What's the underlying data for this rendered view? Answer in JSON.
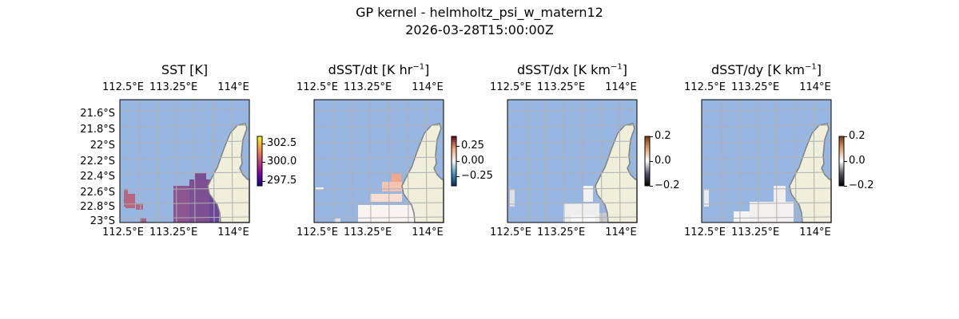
{
  "figure": {
    "title": "GP kernel - helmholtz_psi_w_matern12",
    "subtitle": "2026-03-28T15:00:00Z"
  },
  "colors": {
    "ocean": "#97b6e1",
    "land": "#efefdb",
    "coast": "#808080",
    "grid": "#b0b0b0"
  },
  "chart_data": [
    {
      "type": "heatmap",
      "title": "SST [K]",
      "title_sup": "",
      "title_suffix": "",
      "lon_ticks": [
        "112.5°E",
        "113.25°E",
        "114°E"
      ],
      "lat_ticks": [
        "21.6°S",
        "21.8°S",
        "22°S",
        "22.2°S",
        "22.4°S",
        "22.6°S",
        "22.8°S",
        "23°S"
      ],
      "colormap": "plasma-like",
      "colorbar_ticks": [
        "302.5",
        "300.0",
        "297.5"
      ],
      "colorbar_range": [
        296.8,
        303.5
      ]
    },
    {
      "type": "heatmap",
      "title": "dSST/dt [K hr",
      "title_sup": "−1",
      "title_suffix": "]",
      "lon_ticks": [
        "112.5°E",
        "113.25°E",
        "114°E"
      ],
      "colormap": "RdBu_r",
      "colorbar_ticks": [
        "0.25",
        "0.00",
        "−0.25"
      ],
      "colorbar_range": [
        -0.4,
        0.4
      ]
    },
    {
      "type": "heatmap",
      "title": "dSST/dx [K km",
      "title_sup": "−1",
      "title_suffix": "]",
      "lon_ticks": [
        "112.5°E",
        "113.25°E",
        "114°E"
      ],
      "colormap": "bone-copper",
      "colorbar_ticks": [
        "0.2",
        "0.0",
        "−0.2"
      ],
      "colorbar_range": [
        -0.2,
        0.2
      ]
    },
    {
      "type": "heatmap",
      "title": "dSST/dy [K km",
      "title_sup": "−1",
      "title_suffix": "]",
      "lon_ticks": [
        "112.5°E",
        "113.25°E",
        "114°E"
      ],
      "colormap": "bone-copper",
      "colorbar_ticks": [
        "0.2",
        "0.0",
        "−0.2"
      ],
      "colorbar_range": [
        -0.2,
        0.2
      ]
    }
  ]
}
